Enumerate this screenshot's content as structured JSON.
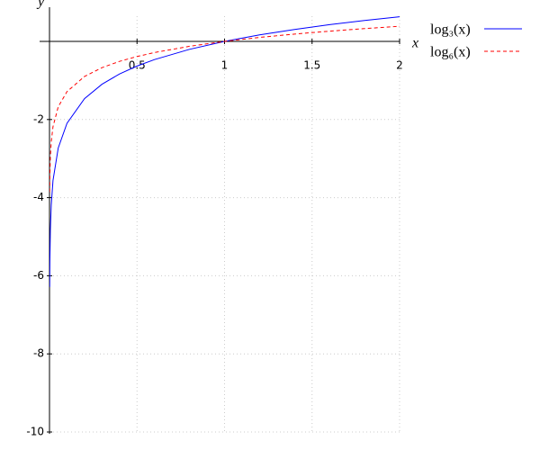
{
  "chart_data": {
    "type": "line",
    "x_label": "x",
    "y_label": "y",
    "x": [
      0.001,
      0.002,
      0.005,
      0.01,
      0.02,
      0.05,
      0.1,
      0.2,
      0.3,
      0.4,
      0.5,
      0.6,
      0.8,
      1,
      1.2,
      1.4,
      1.6,
      1.8,
      2
    ],
    "series": [
      {
        "name": "log₃(x)",
        "color": "#0000ff",
        "dash": false,
        "values": [
          -6.288,
          -5.657,
          -4.823,
          -4.192,
          -3.561,
          -2.727,
          -2.096,
          -1.465,
          -1.096,
          -0.834,
          -0.631,
          -0.465,
          -0.203,
          0,
          0.166,
          0.306,
          0.428,
          0.535,
          0.631
        ]
      },
      {
        "name": "log₆(x)",
        "color": "#ff0000",
        "dash": true,
        "values": [
          -3.855,
          -3.468,
          -2.957,
          -2.57,
          -2.183,
          -1.672,
          -1.285,
          -0.898,
          -0.672,
          -0.511,
          -0.387,
          -0.285,
          -0.125,
          0,
          0.102,
          0.188,
          0.262,
          0.328,
          0.387
        ]
      }
    ],
    "xlim": [
      0,
      2
    ],
    "ylim": [
      -10,
      1
    ],
    "xticks": [
      0.5,
      1,
      1.5,
      2
    ],
    "yticks": [
      -2,
      -4,
      -6,
      -8,
      -10
    ],
    "grid": true,
    "legend": "outside-right"
  }
}
